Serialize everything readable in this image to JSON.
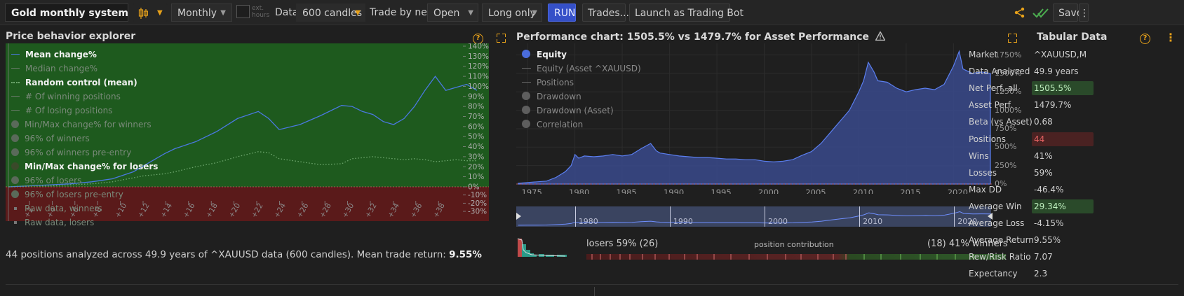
{
  "toolbar": {
    "system_name": "Gold monthly system",
    "interval": "Monthly",
    "ext_hours_label": "ext. hours",
    "data_label": "Data",
    "data_value": "600 candles",
    "trade_label": "Trade by next",
    "trade_value": "Open",
    "direction": "Long only",
    "run_label": "RUN",
    "trades_label": "Trades...",
    "launch_label": "Launch as Trading Bot",
    "save_label": "Save"
  },
  "explorer": {
    "title": "Price behavior explorer",
    "legend": [
      {
        "label": "Mean change%",
        "marker": "line",
        "state": "active"
      },
      {
        "label": "Median change%",
        "marker": "line",
        "state": "dim"
      },
      {
        "label": "Random control (mean)",
        "marker": "dots",
        "state": "active"
      },
      {
        "label": "# Of winning positions",
        "marker": "line",
        "state": "dim"
      },
      {
        "label": "# Of losing positions",
        "marker": "line",
        "state": "dim"
      },
      {
        "label": "Min/Max change% for winners",
        "marker": "circle",
        "state": "dim"
      },
      {
        "label": "96% of winners",
        "marker": "circle",
        "state": "dim"
      },
      {
        "label": "96% of winners pre-entry",
        "marker": "circle",
        "state": "dim"
      },
      {
        "label": "Min/Max change% for losers",
        "marker": "circle",
        "state": "active"
      },
      {
        "label": "96% of losers",
        "marker": "circle",
        "state": "dim"
      },
      {
        "label": "96% of losers pre-entry",
        "marker": "circle",
        "state": "dim"
      },
      {
        "label": "Raw data, winners",
        "marker": "square",
        "state": "dim"
      },
      {
        "label": "Raw data, losers",
        "marker": "square",
        "state": "dim"
      }
    ],
    "y_ticks": [
      "140%",
      "130%",
      "120%",
      "110%",
      "100%",
      "90%",
      "80%",
      "70%",
      "60%",
      "50%",
      "40%",
      "30%",
      "20%",
      "10%",
      "0%",
      "-10%",
      "-20%",
      "-30%"
    ],
    "x_ticks": [
      "+2",
      "+4",
      "+6",
      "+8",
      "+10",
      "+12",
      "+14",
      "+16",
      "+18",
      "+20",
      "+22",
      "+24",
      "+26",
      "+28",
      "+30",
      "+32",
      "+34",
      "+36",
      "+38"
    ],
    "summary_prefix": "44 positions analyzed across 49.9 years of ^XAUUSD data (600 candles). Mean trade return: ",
    "summary_value": "9.55%"
  },
  "chart_data": [
    {
      "type": "line",
      "title": "Price behavior explorer",
      "x": [
        0,
        2,
        4,
        6,
        8,
        10,
        12,
        13,
        14,
        15,
        16,
        18,
        20,
        22,
        24,
        25,
        26,
        28,
        30,
        32,
        33,
        34,
        35,
        36,
        37,
        38,
        39,
        40,
        41,
        42,
        43,
        44,
        45
      ],
      "series": [
        {
          "name": "Mean change%",
          "values": [
            0,
            1,
            2,
            3,
            5,
            8,
            15,
            21,
            27,
            33,
            38,
            45,
            55,
            68,
            75,
            68,
            57,
            62,
            71,
            81,
            80,
            75,
            72,
            65,
            62,
            68,
            80,
            96,
            110,
            96,
            99,
            102,
            96
          ]
        },
        {
          "name": "Random control (mean)",
          "values": [
            0,
            1,
            1,
            2,
            3,
            5,
            9,
            11,
            12,
            13,
            15,
            20,
            24,
            30,
            35,
            34,
            28,
            25,
            22,
            23,
            28,
            29,
            30,
            29,
            28,
            27,
            28,
            27,
            25,
            26,
            27,
            26,
            26
          ]
        }
      ],
      "ylim": [
        -30,
        140
      ]
    },
    {
      "type": "area",
      "title": "Performance chart: 1505.5% vs 1479.7% for Asset Performance",
      "x_ticks": [
        "1975",
        "1980",
        "1985",
        "1990",
        "1995",
        "2000",
        "2005",
        "2010",
        "2015",
        "2020"
      ],
      "y_ticks": [
        "1750%",
        "1500%",
        "1250%",
        "1000%",
        "750%",
        "500%",
        "250%",
        "0%"
      ],
      "xlim": [
        1973.8,
        2023.9
      ],
      "ylim": [
        0,
        1850
      ],
      "series": [
        {
          "name": "Equity",
          "x": [
            1974,
            1975,
            1976,
            1977,
            1978,
            1979,
            1979.6,
            1980,
            1980.4,
            1981,
            1982,
            1983,
            1984,
            1985,
            1986,
            1987,
            1988,
            1988.6,
            1989,
            1990,
            1991,
            1992,
            1993,
            1994,
            1995,
            1996,
            1997,
            1998,
            1999,
            2000,
            2001,
            2002,
            2003,
            2004,
            2005,
            2006,
            2007,
            2008,
            2009,
            2010,
            2010.5,
            2011,
            2011.6,
            2012,
            2013,
            2014,
            2015,
            2016,
            2017,
            2018,
            2019,
            2020,
            2020.6,
            2021,
            2022,
            2023,
            2023.9
          ],
          "values": [
            10,
            20,
            30,
            40,
            90,
            170,
            250,
            400,
            350,
            380,
            370,
            380,
            400,
            380,
            400,
            480,
            550,
            450,
            420,
            400,
            380,
            370,
            360,
            360,
            350,
            340,
            340,
            330,
            330,
            310,
            300,
            310,
            330,
            390,
            440,
            550,
            700,
            850,
            1000,
            1250,
            1400,
            1650,
            1520,
            1400,
            1380,
            1300,
            1250,
            1280,
            1300,
            1280,
            1350,
            1600,
            1800,
            1560,
            1500,
            1520,
            1500
          ]
        }
      ]
    }
  ],
  "performance": {
    "title": "Performance chart: 1505.5% vs 1479.7% for Asset Performance",
    "legend": [
      {
        "label": "Equity",
        "marker": "dot-blue",
        "state": "active"
      },
      {
        "label": "Equity (Asset ^XAUUSD)",
        "marker": "line",
        "state": "dim"
      },
      {
        "label": "Positions",
        "marker": "line",
        "state": "dim"
      },
      {
        "label": "Drawdown",
        "marker": "circle",
        "state": "dim"
      },
      {
        "label": "Drawdown (Asset)",
        "marker": "circle",
        "state": "dim"
      },
      {
        "label": "Correlation",
        "marker": "circle",
        "state": "dim"
      }
    ],
    "navigator_ticks": [
      "1980",
      "1990",
      "2000",
      "2010",
      "2020"
    ],
    "contribution": {
      "losers_label": "losers 59% (26)",
      "center_label": "position contribution",
      "winners_label": "(18) 41% winners"
    }
  },
  "tabular": {
    "title": "Tabular Data",
    "rows": [
      {
        "label": "Market",
        "value": "^XAUUSD,M",
        "hl": ""
      },
      {
        "label": "Data Analyzed",
        "value": "49.9 years",
        "hl": ""
      },
      {
        "label": "Net Perf, all",
        "value": "1505.5%",
        "hl": "green"
      },
      {
        "label": "Asset Perf.",
        "value": "1479.7%",
        "hl": ""
      },
      {
        "label": "Beta (vs Asset)",
        "value": "0.68",
        "hl": ""
      },
      {
        "label": "Positions",
        "value": "44",
        "hl": "red"
      },
      {
        "label": "Wins",
        "value": "41%",
        "hl": ""
      },
      {
        "label": "Losses",
        "value": "59%",
        "hl": ""
      },
      {
        "label": "Max DD",
        "value": "-46.4%",
        "hl": ""
      },
      {
        "label": "Average Win",
        "value": "29.34%",
        "hl": "green"
      },
      {
        "label": "Average Loss",
        "value": "-4.15%",
        "hl": ""
      },
      {
        "label": "Average Return",
        "value": "9.55%",
        "hl": ""
      },
      {
        "label": "Rew/Risk Ratio",
        "value": "7.07",
        "hl": ""
      },
      {
        "label": "Expectancy",
        "value": "2.3",
        "hl": ""
      }
    ]
  },
  "colors": {
    "accent": "#e8a21a",
    "equity": "#4a6cdb",
    "win_zone": "#1e5a1e",
    "loss_zone": "#5a1a1a",
    "run": "#3550c8"
  }
}
